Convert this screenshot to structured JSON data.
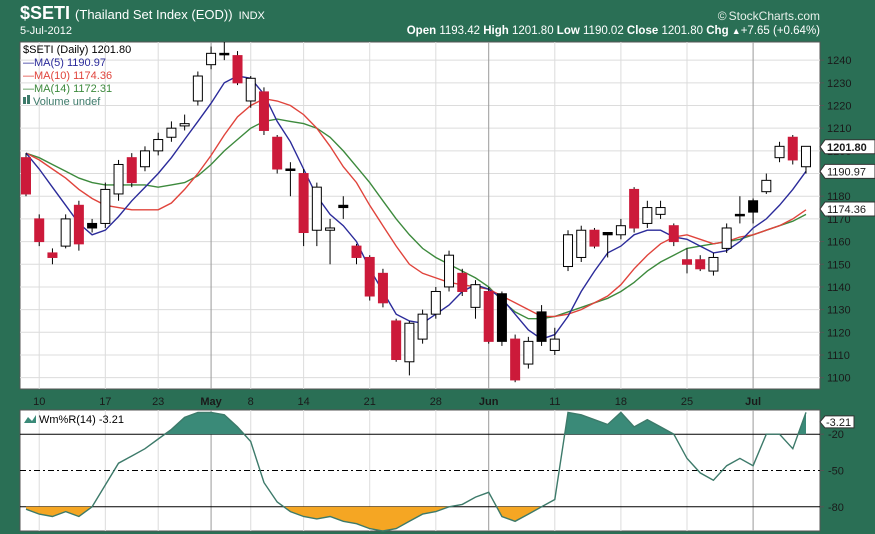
{
  "header": {
    "symbol": "$SETI",
    "name": "(Thailand Set Index (EOD))",
    "exchange": "INDX",
    "date": "5-Jul-2012",
    "brand": "StockCharts.com",
    "open_label": "Open",
    "open": "1193.42",
    "high_label": "High",
    "high": "1201.80",
    "low_label": "Low",
    "low": "1190.02",
    "close_label": "Close",
    "close": "1201.80",
    "chg_label": "Chg",
    "chg": "+7.65 (+0.64%)",
    "up_arrow": "▲"
  },
  "legend": {
    "price": "$SETI (Daily) 1201.80",
    "ma5": "MA(5) 1190.97",
    "ma10": "MA(10) 1174.36",
    "ma14": "MA(14) 1172.31",
    "volume": "Volume undef",
    "wm": "Wm%R(14) -3.21"
  },
  "colors": {
    "frame": "#2a6f55",
    "up": "#ffffff",
    "down": "#cc1a3a",
    "black": "#000000",
    "ma5": "#2b2b9a",
    "ma10": "#e0443c",
    "ma14": "#3d8a3d",
    "wm_line": "#3d7a6a",
    "wm_fill_top": "#3a8a78",
    "wm_fill_bottom": "#f5a623",
    "grid": "#dcdcdc"
  },
  "chart_data": [
    {
      "type": "candlestick",
      "title": "$SETI (Daily) 1201.80",
      "ylim": [
        1095,
        1248
      ],
      "yticks": [
        1100,
        1110,
        1120,
        1130,
        1140,
        1150,
        1160,
        1170,
        1180,
        1190,
        1200,
        1210,
        1220,
        1230,
        1240
      ],
      "price_labels": [
        {
          "value": 1201.8,
          "text": "1201.80",
          "bold": true
        },
        {
          "value": 1190.97,
          "text": "1190.97",
          "bold": false
        },
        {
          "value": 1174.36,
          "text": "1174.36",
          "bold": false
        }
      ],
      "x_labels": [
        {
          "index": 1,
          "text": "10"
        },
        {
          "index": 6,
          "text": "17"
        },
        {
          "index": 10,
          "text": "23"
        },
        {
          "index": 14,
          "text": "May"
        },
        {
          "index": 17,
          "text": "8"
        },
        {
          "index": 21,
          "text": "14"
        },
        {
          "index": 26,
          "text": "21"
        },
        {
          "index": 31,
          "text": "28"
        },
        {
          "index": 35,
          "text": "Jun"
        },
        {
          "index": 40,
          "text": "11"
        },
        {
          "index": 45,
          "text": "18"
        },
        {
          "index": 50,
          "text": "25"
        },
        {
          "index": 55,
          "text": "Jul"
        }
      ],
      "month_lines": [
        14,
        35,
        55
      ],
      "candles": [
        {
          "o": 1197,
          "h": 1199,
          "l": 1180,
          "c": 1181,
          "color": "down"
        },
        {
          "o": 1170,
          "h": 1172,
          "l": 1158,
          "c": 1160,
          "color": "down"
        },
        {
          "o": 1155,
          "h": 1157,
          "l": 1150,
          "c": 1153,
          "color": "down"
        },
        {
          "o": 1158,
          "h": 1172,
          "l": 1157,
          "c": 1170,
          "color": "up"
        },
        {
          "o": 1176,
          "h": 1178,
          "l": 1156,
          "c": 1159,
          "color": "down"
        },
        {
          "o": 1168,
          "h": 1170,
          "l": 1164,
          "c": 1166,
          "color": "black"
        },
        {
          "o": 1168,
          "h": 1186,
          "l": 1166,
          "c": 1183,
          "color": "up"
        },
        {
          "o": 1181,
          "h": 1196,
          "l": 1178,
          "c": 1194,
          "color": "up"
        },
        {
          "o": 1186,
          "h": 1199,
          "l": 1184,
          "c": 1197,
          "color": "down"
        },
        {
          "o": 1193,
          "h": 1202,
          "l": 1191,
          "c": 1200,
          "color": "up"
        },
        {
          "o": 1200,
          "h": 1208,
          "l": 1198,
          "c": 1205,
          "color": "up"
        },
        {
          "o": 1206,
          "h": 1213,
          "l": 1204,
          "c": 1210,
          "color": "up"
        },
        {
          "o": 1211,
          "h": 1216,
          "l": 1209,
          "c": 1212,
          "color": "up"
        },
        {
          "o": 1222,
          "h": 1235,
          "l": 1220,
          "c": 1233,
          "color": "up"
        },
        {
          "o": 1238,
          "h": 1246,
          "l": 1236,
          "c": 1243,
          "color": "up"
        },
        {
          "o": 1243,
          "h": 1248,
          "l": 1240,
          "c": 1243,
          "color": "black"
        },
        {
          "o": 1242,
          "h": 1244,
          "l": 1229,
          "c": 1230,
          "color": "down"
        },
        {
          "o": 1222,
          "h": 1233,
          "l": 1219,
          "c": 1232,
          "color": "up"
        },
        {
          "o": 1226,
          "h": 1228,
          "l": 1207,
          "c": 1209,
          "color": "down"
        },
        {
          "o": 1206,
          "h": 1207,
          "l": 1190,
          "c": 1192,
          "color": "down"
        },
        {
          "o": 1192,
          "h": 1195,
          "l": 1180,
          "c": 1192,
          "color": "black"
        },
        {
          "o": 1190,
          "h": 1192,
          "l": 1158,
          "c": 1164,
          "color": "down"
        },
        {
          "o": 1165,
          "h": 1186,
          "l": 1158,
          "c": 1184,
          "color": "up"
        },
        {
          "o": 1166,
          "h": 1170,
          "l": 1150,
          "c": 1165,
          "color": "up"
        },
        {
          "o": 1176,
          "h": 1180,
          "l": 1170,
          "c": 1175,
          "color": "black"
        },
        {
          "o": 1158,
          "h": 1159,
          "l": 1150,
          "c": 1153,
          "color": "down"
        },
        {
          "o": 1153,
          "h": 1154,
          "l": 1134,
          "c": 1136,
          "color": "down"
        },
        {
          "o": 1146,
          "h": 1148,
          "l": 1131,
          "c": 1133,
          "color": "down"
        },
        {
          "o": 1125,
          "h": 1126,
          "l": 1107,
          "c": 1108,
          "color": "down"
        },
        {
          "o": 1107,
          "h": 1125,
          "l": 1101,
          "c": 1124,
          "color": "up"
        },
        {
          "o": 1117,
          "h": 1130,
          "l": 1115,
          "c": 1128,
          "color": "up"
        },
        {
          "o": 1128,
          "h": 1140,
          "l": 1126,
          "c": 1138,
          "color": "up"
        },
        {
          "o": 1140,
          "h": 1156,
          "l": 1138,
          "c": 1154,
          "color": "up"
        },
        {
          "o": 1146,
          "h": 1148,
          "l": 1136,
          "c": 1138,
          "color": "down"
        },
        {
          "o": 1131,
          "h": 1143,
          "l": 1126,
          "c": 1141,
          "color": "up"
        },
        {
          "o": 1138,
          "h": 1140,
          "l": 1115,
          "c": 1116,
          "color": "down"
        },
        {
          "o": 1116,
          "h": 1138,
          "l": 1114,
          "c": 1137,
          "color": "black"
        },
        {
          "o": 1117,
          "h": 1119,
          "l": 1098,
          "c": 1099,
          "color": "down"
        },
        {
          "o": 1106,
          "h": 1118,
          "l": 1104,
          "c": 1116,
          "color": "up"
        },
        {
          "o": 1116,
          "h": 1132,
          "l": 1114,
          "c": 1129,
          "color": "black"
        },
        {
          "o": 1112,
          "h": 1122,
          "l": 1110,
          "c": 1117,
          "color": "up"
        },
        {
          "o": 1149,
          "h": 1165,
          "l": 1147,
          "c": 1163,
          "color": "up"
        },
        {
          "o": 1153,
          "h": 1167,
          "l": 1151,
          "c": 1165,
          "color": "up"
        },
        {
          "o": 1165,
          "h": 1166,
          "l": 1157,
          "c": 1158,
          "color": "down"
        },
        {
          "o": 1163,
          "h": 1164,
          "l": 1153,
          "c": 1164,
          "color": "black"
        },
        {
          "o": 1163,
          "h": 1170,
          "l": 1161,
          "c": 1167,
          "color": "up"
        },
        {
          "o": 1183,
          "h": 1184,
          "l": 1164,
          "c": 1166,
          "color": "down"
        },
        {
          "o": 1168,
          "h": 1178,
          "l": 1166,
          "c": 1175,
          "color": "up"
        },
        {
          "o": 1172,
          "h": 1178,
          "l": 1170,
          "c": 1175,
          "color": "up"
        },
        {
          "o": 1167,
          "h": 1168,
          "l": 1158,
          "c": 1160,
          "color": "down"
        },
        {
          "o": 1152,
          "h": 1157,
          "l": 1146,
          "c": 1150,
          "color": "down"
        },
        {
          "o": 1152,
          "h": 1154,
          "l": 1147,
          "c": 1148,
          "color": "down"
        },
        {
          "o": 1147,
          "h": 1155,
          "l": 1145,
          "c": 1153,
          "color": "up"
        },
        {
          "o": 1157,
          "h": 1168,
          "l": 1155,
          "c": 1166,
          "color": "up"
        },
        {
          "o": 1172,
          "h": 1180,
          "l": 1168,
          "c": 1172,
          "color": "black"
        },
        {
          "o": 1173,
          "h": 1179,
          "l": 1168,
          "c": 1178,
          "color": "black"
        },
        {
          "o": 1182,
          "h": 1190,
          "l": 1181,
          "c": 1187,
          "color": "up"
        },
        {
          "o": 1197,
          "h": 1204,
          "l": 1195,
          "c": 1202,
          "color": "up"
        },
        {
          "o": 1206,
          "h": 1207,
          "l": 1194,
          "c": 1196,
          "color": "down"
        },
        {
          "o": 1193,
          "h": 1202,
          "l": 1190,
          "c": 1202,
          "color": "up"
        }
      ],
      "ma5": [
        1199,
        1192,
        1184,
        1176,
        1168,
        1163,
        1165,
        1171,
        1178,
        1184,
        1190,
        1197,
        1205,
        1213,
        1221,
        1230,
        1233,
        1232,
        1225,
        1213,
        1204,
        1192,
        1180,
        1172,
        1167,
        1160,
        1148,
        1138,
        1128,
        1125,
        1124,
        1128,
        1132,
        1138,
        1141,
        1139,
        1135,
        1128,
        1121,
        1117,
        1119,
        1127,
        1138,
        1147,
        1155,
        1158,
        1163,
        1165,
        1165,
        1162,
        1161,
        1158,
        1155,
        1156,
        1160,
        1166,
        1170,
        1176,
        1183,
        1191
      ],
      "ma10": [
        1199,
        1196,
        1192,
        1188,
        1183,
        1179,
        1176,
        1175,
        1174,
        1174,
        1174,
        1177,
        1183,
        1190,
        1198,
        1207,
        1215,
        1220,
        1223,
        1222,
        1220,
        1216,
        1210,
        1202,
        1193,
        1186,
        1176,
        1167,
        1158,
        1150,
        1146,
        1144,
        1142,
        1141,
        1140,
        1139,
        1136,
        1133,
        1130,
        1127,
        1127,
        1128,
        1130,
        1133,
        1136,
        1141,
        1148,
        1154,
        1159,
        1162,
        1163,
        1161,
        1159,
        1160,
        1162,
        1163,
        1165,
        1167,
        1170,
        1174
      ],
      "ma14": [
        1199,
        1197,
        1194,
        1191,
        1188,
        1186,
        1185,
        1185,
        1185,
        1185,
        1184,
        1185,
        1186,
        1189,
        1194,
        1200,
        1205,
        1210,
        1213,
        1214,
        1213,
        1212,
        1210,
        1206,
        1200,
        1193,
        1186,
        1178,
        1170,
        1163,
        1157,
        1153,
        1150,
        1147,
        1144,
        1140,
        1134,
        1129,
        1126,
        1126,
        1127,
        1129,
        1131,
        1133,
        1135,
        1138,
        1142,
        1147,
        1151,
        1154,
        1157,
        1158,
        1159,
        1160,
        1161,
        1163,
        1165,
        1167,
        1169,
        1172
      ]
    },
    {
      "type": "line",
      "title": "Wm%R(14) -3.21",
      "ylim": [
        -100,
        0
      ],
      "reference_lines": [
        -20,
        -50,
        -80
      ],
      "y_labels": [
        {
          "value": -20,
          "text": "-20"
        },
        {
          "value": -50,
          "text": "-50"
        },
        {
          "value": -80,
          "text": "-80"
        }
      ],
      "last_label": {
        "value": -3.21,
        "text": "-3.21"
      },
      "values": [
        -82,
        -86,
        -88,
        -84,
        -88,
        -80,
        -62,
        -44,
        -38,
        -32,
        -24,
        -16,
        -6,
        -2,
        -2,
        -4,
        -14,
        -26,
        -60,
        -76,
        -84,
        -88,
        -90,
        -88,
        -92,
        -94,
        -98,
        -100,
        -98,
        -92,
        -86,
        -84,
        -80,
        -78,
        -72,
        -68,
        -88,
        -92,
        -86,
        -80,
        -74,
        -2,
        -4,
        -8,
        -12,
        -2,
        -14,
        -8,
        -14,
        -20,
        -40,
        -52,
        -58,
        -46,
        -40,
        -46,
        -20,
        -20,
        -32,
        -2
      ]
    }
  ]
}
